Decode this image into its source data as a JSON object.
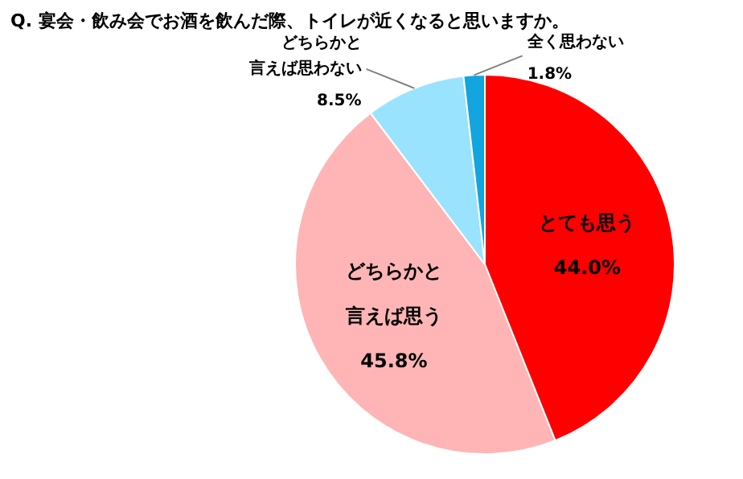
{
  "chart_data": {
    "type": "pie",
    "title": "Q. 宴会・飲み会でお酒を飲んだ際、トイレが近くなると思いますか。",
    "categories": [
      "とても思う",
      "どちらかと言えば思う",
      "どちらかと言えば思わない",
      "全く思わない"
    ],
    "values": [
      44.0,
      45.8,
      8.5,
      1.8
    ],
    "value_labels": [
      "44.0%",
      "45.8%",
      "8.5%",
      "1.8%"
    ],
    "colors": [
      "#ff0000",
      "#ffb5b5",
      "#99e3ff",
      "#12a5e0"
    ]
  }
}
